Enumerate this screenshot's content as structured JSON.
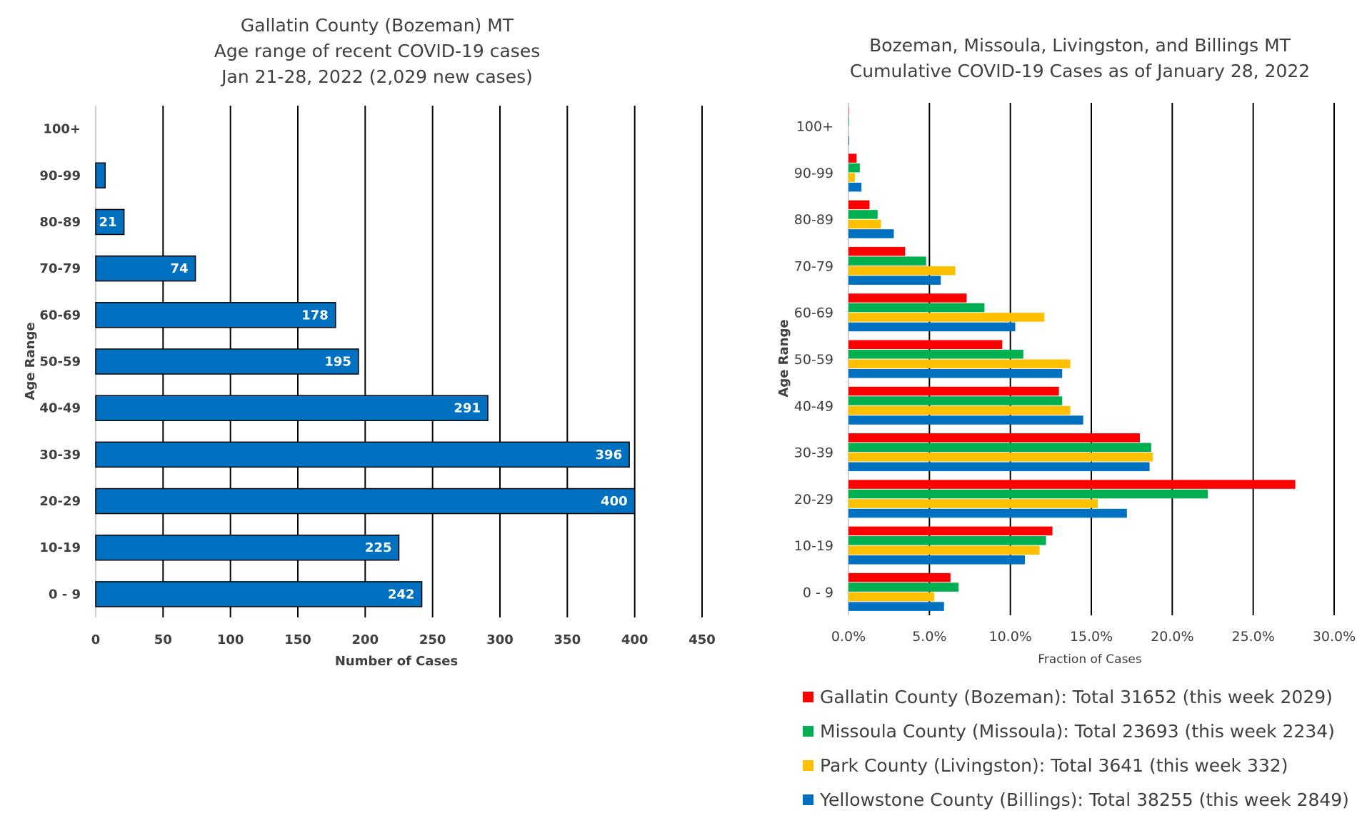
{
  "chart_data": [
    {
      "type": "bar",
      "orientation": "horizontal",
      "title": [
        "Gallatin County (Bozeman) MT",
        "Age range of recent COVID-19 cases",
        "Jan 21-28, 2022 (2,029 new cases)"
      ],
      "xlabel": "Number of Cases",
      "ylabel": "Age Range",
      "categories": [
        "0 - 9",
        "10-19",
        "20-29",
        "30-39",
        "40-49",
        "50-59",
        "60-69",
        "70-79",
        "80-89",
        "90-99",
        "100+"
      ],
      "values": [
        242,
        225,
        400,
        396,
        291,
        195,
        178,
        74,
        21,
        7,
        0
      ],
      "data_labels": [
        "242",
        "225",
        "400",
        "396",
        "291",
        "195",
        "178",
        "74",
        "21",
        "",
        ""
      ],
      "xlim": [
        0,
        450
      ],
      "xticks": [
        0,
        50,
        100,
        150,
        200,
        250,
        300,
        350,
        400,
        450
      ],
      "xtick_labels": [
        "0",
        "50",
        "100",
        "150",
        "200",
        "250",
        "300",
        "350",
        "400",
        "450"
      ],
      "grid": "vertical",
      "color": "#0070C0"
    },
    {
      "type": "bar",
      "orientation": "horizontal",
      "title": [
        "Bozeman, Missoula, Livingston, and Billings MT",
        "Cumulative COVID-19 Cases as of January 28, 2022"
      ],
      "xlabel": "Fraction of Cases",
      "ylabel": "Age Range",
      "categories": [
        "0 - 9",
        "10-19",
        "20-29",
        "30-39",
        "40-49",
        "50-59",
        "60-69",
        "70-79",
        "80-89",
        "90-99",
        "100+"
      ],
      "xlim": [
        0,
        0.3
      ],
      "xticks": [
        0,
        0.05,
        0.1,
        0.15,
        0.2,
        0.25,
        0.3
      ],
      "xtick_labels": [
        "0.0%",
        "5.0%",
        "10.0%",
        "15.0%",
        "20.0%",
        "25.0%",
        "30.0%"
      ],
      "grid": "vertical",
      "legend_position": "bottom",
      "series": [
        {
          "name": "Gallatin County (Bozeman): Total 31652 (this week 2029)",
          "color": "#FF0000",
          "values": [
            0.063,
            0.126,
            0.276,
            0.18,
            0.13,
            0.095,
            0.073,
            0.035,
            0.013,
            0.005,
            0.0002
          ]
        },
        {
          "name": "Missoula County (Missoula): Total 23693 (this week 2234)",
          "color": "#00B050",
          "values": [
            0.068,
            0.122,
            0.222,
            0.187,
            0.132,
            0.108,
            0.084,
            0.048,
            0.018,
            0.007,
            0.0003
          ]
        },
        {
          "name": "Park County (Livingston): Total 3641 (this week 332)",
          "color": "#FFC000",
          "values": [
            0.053,
            0.118,
            0.154,
            0.188,
            0.137,
            0.137,
            0.121,
            0.066,
            0.02,
            0.004,
            0
          ]
        },
        {
          "name": "Yellowstone County (Billings): Total 38255 (this week 2849)",
          "color": "#0070C0",
          "values": [
            0.059,
            0.109,
            0.172,
            0.186,
            0.145,
            0.132,
            0.103,
            0.057,
            0.028,
            0.008,
            0.0004
          ]
        }
      ]
    }
  ]
}
